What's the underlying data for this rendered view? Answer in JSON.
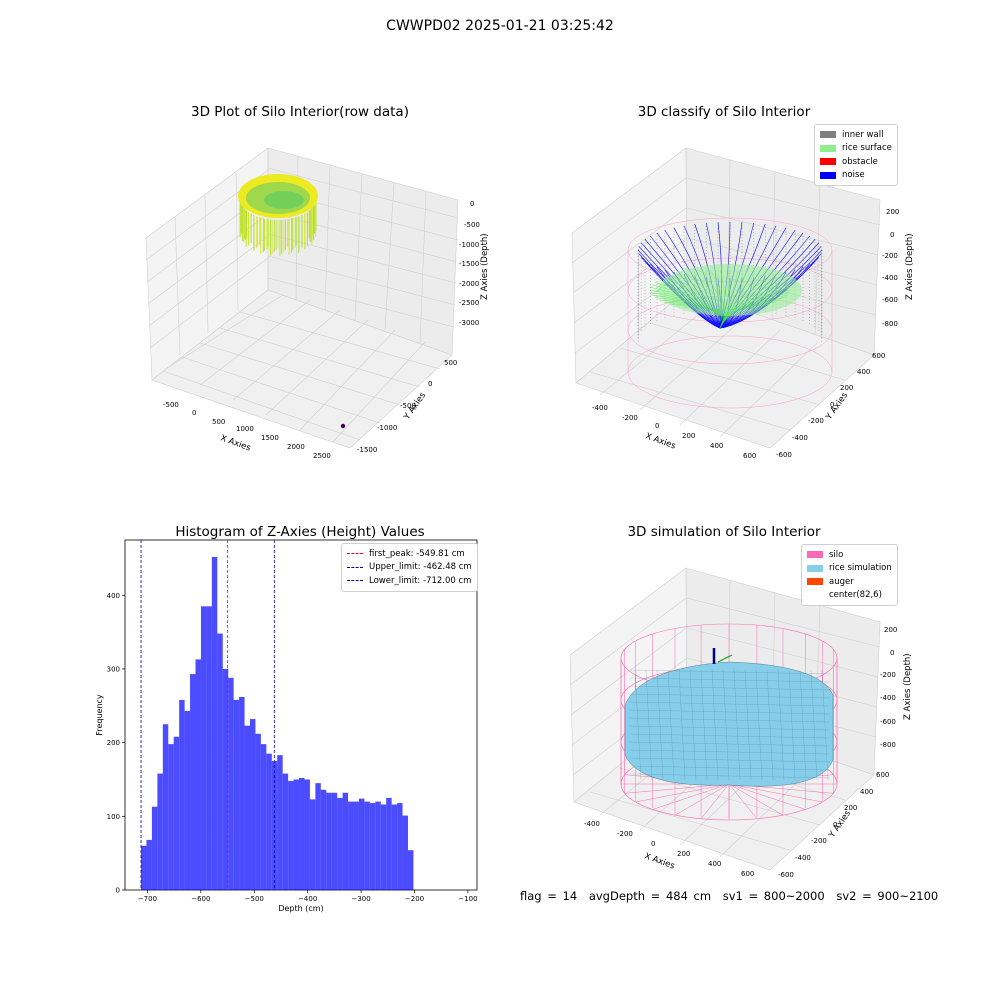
{
  "suptitle": "CWWPD02 2025-01-21 03:25:42",
  "footer": {
    "flag": "flag = 14",
    "avg": "avgDepth = 484 cm",
    "sv1": "sv1 = 800~2000",
    "sv2": "sv2 = 900~2100"
  },
  "chart_data": [
    {
      "type": "scatter",
      "title": "3D Plot of Silo Interior(row data)",
      "xlabel": "X Axies",
      "ylabel": "Y Axies",
      "zlabel": "Z Axies (Depth)",
      "x_ticks": [
        "-500",
        "0",
        "500",
        "1000",
        "1500",
        "2000",
        "2500"
      ],
      "y_ticks": [
        "500",
        "0",
        "-500",
        "-1000",
        "-1500"
      ],
      "z_ticks": [
        "0",
        "-500",
        "-1000",
        "-1500",
        "-2000",
        "-2500",
        "-3000"
      ],
      "colors": {
        "high": "#f2e800",
        "mid": "#b4e23a",
        "low": "#62d060",
        "outlier": "#440154"
      }
    },
    {
      "type": "scatter",
      "title": "3D classify of Silo Interior",
      "xlabel": "X Axies",
      "ylabel": "Y Axies",
      "zlabel": "Z Axies (Depth)",
      "x_ticks": [
        "-400",
        "-200",
        "0",
        "200",
        "400",
        "600"
      ],
      "y_ticks": [
        "600",
        "400",
        "200",
        "0",
        "-200",
        "-400",
        "-600"
      ],
      "z_ticks": [
        "200",
        "0",
        "-200",
        "-400",
        "-600",
        "-800"
      ],
      "legend": [
        {
          "label": "inner wall",
          "color": "#808080"
        },
        {
          "label": "rice surface",
          "color": "#90ee90"
        },
        {
          "label": "obstacle",
          "color": "#ff0000"
        },
        {
          "label": "noise",
          "color": "#0000ff"
        }
      ]
    },
    {
      "type": "bar",
      "title": "Histogram of Z-Axies (Height) Values",
      "xlabel": "Depth (cm)",
      "ylabel": "Frequency",
      "xlim": [
        -742,
        -83
      ],
      "ylim": [
        0,
        475
      ],
      "x_ticks": [
        -700,
        -600,
        -500,
        -400,
        -300,
        -200,
        -100
      ],
      "y_ticks": [
        0,
        100,
        200,
        300,
        400
      ],
      "bin_start": -712,
      "bin_width": 10.2,
      "values": [
        60,
        68,
        113,
        158,
        225,
        198,
        208,
        258,
        243,
        293,
        313,
        385,
        385,
        452,
        348,
        300,
        288,
        258,
        262,
        223,
        232,
        212,
        198,
        185,
        175,
        183,
        158,
        148,
        150,
        152,
        150,
        123,
        145,
        136,
        132,
        132,
        125,
        132,
        120,
        120,
        124,
        120,
        118,
        120,
        116,
        125,
        116,
        118,
        101,
        54
      ],
      "color": "#0000ff",
      "lines": [
        {
          "label": "first_peak: -549.81 cm",
          "value": -549.81,
          "color": "#ff0000"
        },
        {
          "label": "Upper_limit: -462.48 cm",
          "value": -462.48,
          "color": "#0000aa"
        },
        {
          "label": "Lower_limit: -712.00 cm",
          "value": -712.0,
          "color": "#0000aa"
        }
      ]
    },
    {
      "type": "surface",
      "title": "3D simulation of Silo Interior",
      "xlabel": "X Axies",
      "ylabel": "Y Axies",
      "zlabel": "Z Axies (Depth)",
      "x_ticks": [
        "-400",
        "-200",
        "0",
        "200",
        "400",
        "600"
      ],
      "y_ticks": [
        "600",
        "400",
        "200",
        "0",
        "-200",
        "-400",
        "-600"
      ],
      "z_ticks": [
        "200",
        "0",
        "-200",
        "-400",
        "-600",
        "-800"
      ],
      "legend": [
        {
          "label": "silo",
          "color": "#ff69b4"
        },
        {
          "label": "rice simulation",
          "color": "#87ceeb"
        },
        {
          "label": "auger",
          "color": "#ff4500"
        },
        {
          "label": "center(82,6)",
          "color": "#ffffff"
        }
      ]
    }
  ]
}
